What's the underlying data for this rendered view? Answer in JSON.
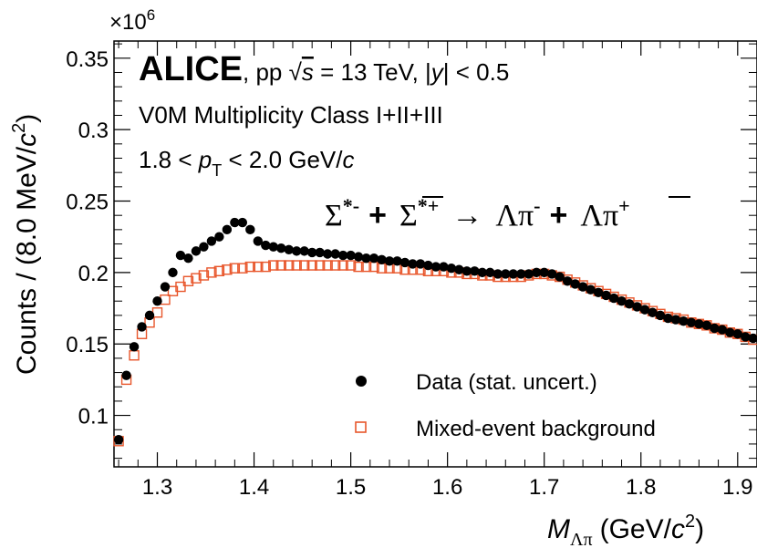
{
  "chart_data": {
    "type": "scatter",
    "experiment": "ALICE",
    "collision_text": ", pp ",
    "energy_text": " = 13 TeV, |",
    "rapidity_text": "| < 0.5",
    "class_text": "V0M Multiplicity Class I+II+III",
    "pt_prefix": "1.8 < ",
    "pt_suffix": " < 2.0 GeV/",
    "pt_symbol": "p",
    "pt_subscript": "T",
    "c_symbol": "c",
    "s_symbol": "s",
    "y_symbol": "y",
    "reaction": {
      "part1": "Σ",
      "sup1": "*-",
      "plus1": "+",
      "part2": "Σ",
      "sup2": "*+",
      "arrow": "→",
      "part3": "Λπ",
      "sup3": "-",
      "plus2": "+",
      "part4": "Λ",
      "part4b": "π",
      "sup4": "+"
    },
    "xlabel": {
      "symbol": "M",
      "subscript": "Λπ",
      "unit": "(GeV/",
      "c": "c",
      "sup": "2",
      "close": ")"
    },
    "ylabel": {
      "text": "Counts / (8.0 MeV/",
      "c": "c",
      "sup": "2",
      "close": ")"
    },
    "exponent_label": "×10",
    "exponent_power": "6",
    "xlim": [
      1.2552,
      1.92
    ],
    "ylim": [
      0.064,
      0.362
    ],
    "xticks": [
      1.3,
      1.4,
      1.5,
      1.6,
      1.7,
      1.8,
      1.9
    ],
    "xtick_labels": [
      "1.3",
      "1.4",
      "1.5",
      "1.6",
      "1.7",
      "1.8",
      "1.9"
    ],
    "yticks": [
      0.1,
      0.15,
      0.2,
      0.25,
      0.3,
      0.35
    ],
    "ytick_labels": [
      "0.1",
      "0.15",
      "0.2",
      "0.25",
      "0.3",
      "0.35"
    ],
    "legend_position": "bottom-right",
    "series": [
      {
        "name": "Data (stat. uncert.)",
        "marker": "filled-circle",
        "color": "#000000",
        "x": [
          1.26,
          1.268,
          1.276,
          1.284,
          1.292,
          1.3,
          1.308,
          1.316,
          1.324,
          1.332,
          1.34,
          1.348,
          1.356,
          1.364,
          1.372,
          1.38,
          1.388,
          1.396,
          1.404,
          1.412,
          1.42,
          1.428,
          1.436,
          1.444,
          1.452,
          1.46,
          1.468,
          1.476,
          1.484,
          1.492,
          1.5,
          1.508,
          1.516,
          1.524,
          1.532,
          1.54,
          1.548,
          1.556,
          1.564,
          1.572,
          1.58,
          1.588,
          1.596,
          1.604,
          1.612,
          1.62,
          1.628,
          1.636,
          1.644,
          1.652,
          1.66,
          1.668,
          1.676,
          1.684,
          1.692,
          1.7,
          1.708,
          1.716,
          1.724,
          1.732,
          1.74,
          1.748,
          1.756,
          1.764,
          1.772,
          1.78,
          1.788,
          1.796,
          1.804,
          1.812,
          1.82,
          1.828,
          1.836,
          1.844,
          1.852,
          1.86,
          1.868,
          1.876,
          1.884,
          1.892,
          1.9,
          1.908,
          1.916
        ],
        "y": [
          0.083,
          0.128,
          0.148,
          0.162,
          0.17,
          0.18,
          0.19,
          0.2,
          0.212,
          0.21,
          0.215,
          0.218,
          0.222,
          0.225,
          0.23,
          0.235,
          0.235,
          0.23,
          0.222,
          0.219,
          0.218,
          0.217,
          0.216,
          0.215,
          0.215,
          0.214,
          0.214,
          0.213,
          0.213,
          0.212,
          0.212,
          0.211,
          0.21,
          0.21,
          0.209,
          0.208,
          0.208,
          0.207,
          0.206,
          0.206,
          0.205,
          0.204,
          0.204,
          0.203,
          0.202,
          0.201,
          0.201,
          0.2,
          0.2,
          0.199,
          0.199,
          0.199,
          0.199,
          0.199,
          0.2,
          0.2,
          0.199,
          0.197,
          0.194,
          0.192,
          0.19,
          0.188,
          0.186,
          0.184,
          0.182,
          0.18,
          0.178,
          0.176,
          0.174,
          0.172,
          0.17,
          0.168,
          0.167,
          0.166,
          0.165,
          0.164,
          0.163,
          0.161,
          0.16,
          0.158,
          0.157,
          0.155,
          0.154
        ]
      },
      {
        "name": "Mixed-event background",
        "marker": "open-square",
        "color": "#e8562b",
        "x": [
          1.26,
          1.268,
          1.276,
          1.284,
          1.292,
          1.3,
          1.308,
          1.316,
          1.324,
          1.332,
          1.34,
          1.348,
          1.356,
          1.364,
          1.372,
          1.38,
          1.388,
          1.396,
          1.404,
          1.412,
          1.42,
          1.428,
          1.436,
          1.444,
          1.452,
          1.46,
          1.468,
          1.476,
          1.484,
          1.492,
          1.5,
          1.508,
          1.516,
          1.524,
          1.532,
          1.54,
          1.548,
          1.556,
          1.564,
          1.572,
          1.58,
          1.588,
          1.596,
          1.604,
          1.612,
          1.62,
          1.628,
          1.636,
          1.644,
          1.652,
          1.66,
          1.668,
          1.676,
          1.684,
          1.692,
          1.7,
          1.708,
          1.716,
          1.724,
          1.732,
          1.74,
          1.748,
          1.756,
          1.764,
          1.772,
          1.78,
          1.788,
          1.796,
          1.804,
          1.812,
          1.82,
          1.828,
          1.836,
          1.844,
          1.852,
          1.86,
          1.868,
          1.876,
          1.884,
          1.892,
          1.9,
          1.908,
          1.916
        ],
        "y": [
          0.082,
          0.125,
          0.142,
          0.157,
          0.165,
          0.172,
          0.181,
          0.187,
          0.19,
          0.194,
          0.196,
          0.198,
          0.2,
          0.201,
          0.202,
          0.203,
          0.203,
          0.204,
          0.204,
          0.204,
          0.205,
          0.205,
          0.205,
          0.205,
          0.205,
          0.205,
          0.205,
          0.205,
          0.205,
          0.205,
          0.205,
          0.204,
          0.204,
          0.204,
          0.203,
          0.203,
          0.203,
          0.202,
          0.202,
          0.202,
          0.201,
          0.201,
          0.201,
          0.2,
          0.2,
          0.199,
          0.199,
          0.198,
          0.198,
          0.197,
          0.197,
          0.197,
          0.197,
          0.198,
          0.199,
          0.199,
          0.198,
          0.197,
          0.195,
          0.193,
          0.191,
          0.189,
          0.187,
          0.185,
          0.183,
          0.181,
          0.179,
          0.177,
          0.175,
          0.173,
          0.171,
          0.169,
          0.168,
          0.167,
          0.165,
          0.164,
          0.163,
          0.161,
          0.16,
          0.158,
          0.157,
          0.155,
          0.153
        ]
      }
    ]
  }
}
